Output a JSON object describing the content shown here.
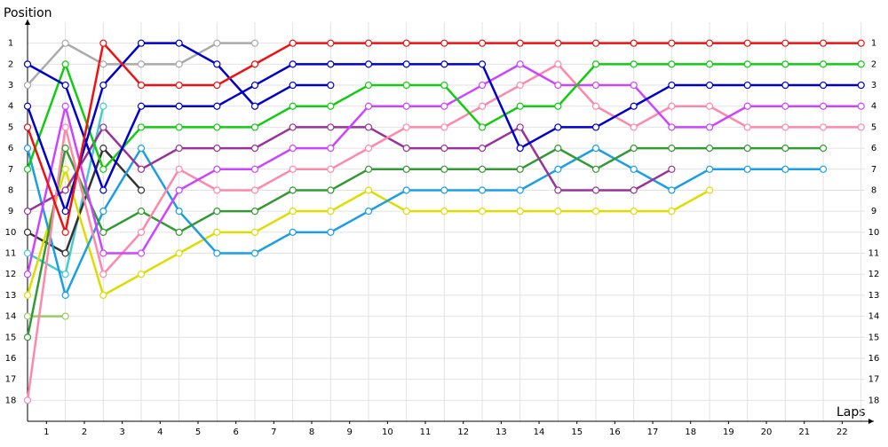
{
  "chart_data": {
    "type": "line",
    "y_label": "Position",
    "x_label": "Laps",
    "x": [
      0,
      1,
      2,
      3,
      4,
      5,
      6,
      7,
      8,
      9,
      10,
      11,
      12,
      13,
      14,
      15,
      16,
      17,
      18,
      19,
      20,
      21,
      22
    ],
    "xlim": [
      0,
      22.1
    ],
    "xticks": [
      {
        "value": 0.5,
        "label": "1"
      },
      {
        "value": 1.5,
        "label": "2"
      },
      {
        "value": 2.5,
        "label": "3"
      },
      {
        "value": 3.5,
        "label": "4"
      },
      {
        "value": 4.5,
        "label": "5"
      },
      {
        "value": 5.5,
        "label": "6"
      },
      {
        "value": 6.5,
        "label": "7"
      },
      {
        "value": 7.5,
        "label": "8"
      },
      {
        "value": 8.5,
        "label": "9"
      },
      {
        "value": 9.5,
        "label": "10"
      },
      {
        "value": 10.5,
        "label": "11"
      },
      {
        "value": 11.5,
        "label": "12"
      },
      {
        "value": 12.5,
        "label": "13"
      },
      {
        "value": 13.5,
        "label": "14"
      },
      {
        "value": 14.5,
        "label": "15"
      },
      {
        "value": 15.5,
        "label": "16"
      },
      {
        "value": 16.5,
        "label": "17"
      },
      {
        "value": 17.5,
        "label": "18"
      },
      {
        "value": 18.5,
        "label": "19"
      },
      {
        "value": 19.5,
        "label": "20"
      },
      {
        "value": 20.5,
        "label": "21"
      },
      {
        "value": 21.5,
        "label": "22"
      }
    ],
    "ylim": [
      19,
      0
    ],
    "yticks": [
      1,
      2,
      3,
      4,
      5,
      6,
      7,
      8,
      9,
      10,
      11,
      12,
      13,
      14,
      15,
      16,
      17,
      18
    ],
    "grid": true,
    "series": [
      {
        "color": "#aaaaaa",
        "values": [
          3,
          1,
          2,
          2,
          2,
          1,
          1,
          null,
          null,
          null,
          null,
          null,
          null,
          null,
          null,
          null,
          null,
          null,
          null,
          null,
          null,
          null,
          null
        ]
      },
      {
        "color": "#99cc66",
        "values": [
          14,
          14,
          null,
          null,
          null,
          null,
          null,
          null,
          null,
          null,
          null,
          null,
          null,
          null,
          null,
          null,
          null,
          null,
          null,
          null,
          null,
          null,
          null
        ]
      },
      {
        "color": "#44cccc",
        "values": [
          11,
          12,
          4,
          null,
          null,
          null,
          null,
          null,
          null,
          null,
          null,
          null,
          null,
          null,
          null,
          null,
          null,
          null,
          null,
          null,
          null,
          null,
          null
        ]
      },
      {
        "color": "#333333",
        "values": [
          10,
          11,
          6,
          8,
          null,
          null,
          null,
          null,
          null,
          null,
          null,
          null,
          null,
          null,
          null,
          null,
          null,
          null,
          null,
          null,
          null,
          null,
          null
        ]
      },
      {
        "color": "#dddd00",
        "values": [
          13,
          7,
          13,
          12,
          11,
          10,
          10,
          9,
          9,
          8,
          9,
          9,
          9,
          9,
          9,
          9,
          9,
          9,
          8,
          null,
          null,
          null,
          null
        ]
      },
      {
        "color": "#1a9ee6",
        "values": [
          6,
          13,
          9,
          6,
          9,
          11,
          11,
          10,
          10,
          9,
          8,
          8,
          8,
          8,
          7,
          6,
          7,
          8,
          7,
          7,
          7,
          7,
          null
        ]
      },
      {
        "color": "#339933",
        "values": [
          15,
          6,
          10,
          9,
          10,
          9,
          9,
          8,
          8,
          7,
          7,
          7,
          7,
          7,
          6,
          7,
          6,
          6,
          6,
          6,
          6,
          6,
          null
        ]
      },
      {
        "color": "#993399",
        "values": [
          9,
          8,
          5,
          7,
          6,
          6,
          6,
          5,
          5,
          5,
          6,
          6,
          6,
          5,
          8,
          8,
          8,
          7,
          null,
          null,
          null,
          null,
          null
        ]
      },
      {
        "color": "#ff88aa",
        "values": [
          18,
          5,
          12,
          10,
          7,
          8,
          8,
          7,
          7,
          6,
          5,
          5,
          4,
          3,
          2,
          4,
          5,
          4,
          4,
          5,
          5,
          5,
          5
        ]
      },
      {
        "color": "#cc44ff",
        "values": [
          12,
          4,
          11,
          11,
          8,
          7,
          7,
          6,
          6,
          4,
          4,
          4,
          3,
          2,
          3,
          3,
          3,
          5,
          5,
          4,
          4,
          4,
          4
        ]
      },
      {
        "color": "#11cc11",
        "values": [
          7,
          2,
          7,
          5,
          5,
          5,
          5,
          4,
          4,
          3,
          3,
          3,
          5,
          4,
          4,
          2,
          2,
          2,
          2,
          2,
          2,
          2,
          2
        ]
      },
      {
        "color": "#0000cc",
        "values": [
          4,
          9,
          3,
          1,
          1,
          2,
          4,
          3,
          3,
          null,
          null,
          null,
          null,
          null,
          null,
          null,
          null,
          null,
          null,
          null,
          null,
          null,
          null
        ]
      },
      {
        "color": "#0000cc",
        "values": [
          2,
          3,
          8,
          4,
          4,
          4,
          3,
          2,
          2,
          2,
          2,
          2,
          2,
          6,
          5,
          5,
          4,
          3,
          3,
          3,
          3,
          3,
          3
        ]
      },
      {
        "color": "#ee1111",
        "values": [
          5,
          10,
          1,
          3,
          3,
          3,
          2,
          1,
          1,
          1,
          1,
          1,
          1,
          1,
          1,
          1,
          1,
          1,
          1,
          1,
          1,
          1,
          1
        ]
      }
    ]
  }
}
